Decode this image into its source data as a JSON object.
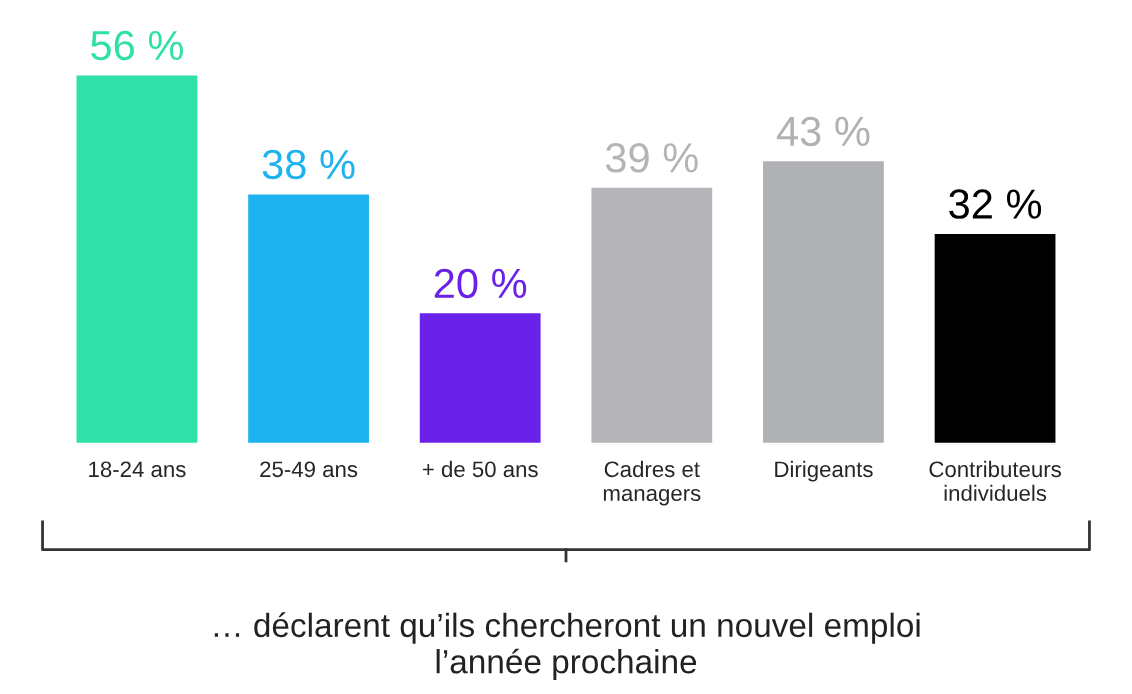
{
  "chart_data": {
    "type": "bar",
    "categories": [
      "18-24 ans",
      "25-49 ans",
      "+ de 50 ans",
      "Cadres et\nmanagers",
      "Dirigeants",
      "Contributeurs\nindividuels"
    ],
    "values": [
      56,
      38,
      20,
      39,
      43,
      32
    ],
    "colors": [
      "#2fe0a8",
      "#1eb2f0",
      "#6a22e8",
      "#b4b4b8",
      "#b0b1b5",
      "#000000"
    ],
    "value_labels": [
      "56 %",
      "38 %",
      "20 %",
      "39 %",
      "43 %",
      "32 %"
    ],
    "annotations": [
      "… déclarent qu’ils chercheront un nouvel emploi\nl’année prochaine"
    ],
    "grid": false,
    "legend": false
  }
}
